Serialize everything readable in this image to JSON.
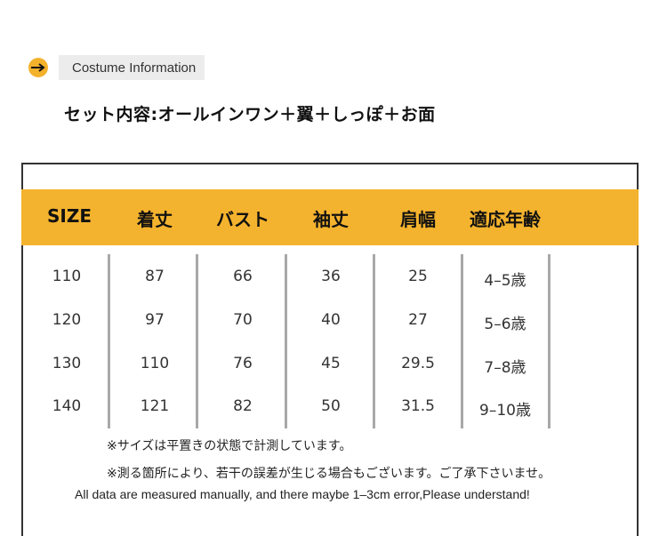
{
  "section_label": "Costume Information",
  "contents_text": "セット内容:オールインワン＋翼＋しっぽ＋お面",
  "table": {
    "headers": [
      "SIZE",
      "着丈",
      "バスト",
      "袖丈",
      "肩幅",
      "適応年齢"
    ],
    "rows": [
      [
        "110",
        "87",
        "66",
        "36",
        "25",
        "4–5歳"
      ],
      [
        "120",
        "97",
        "70",
        "40",
        "27",
        "5–6歳"
      ],
      [
        "130",
        "110",
        "76",
        "45",
        "29.5",
        "7–8歳"
      ],
      [
        "140",
        "121",
        "82",
        "50",
        "31.5",
        "9–10歳"
      ]
    ]
  },
  "notes": [
    "※サイズは平置きの状態で計測しています。",
    "※測る箇所により、若干の誤差が生じる場合もございます。ご了承下さいませ。",
    "All data are measured manually, and there maybe 1–3cm error,Please understand!"
  ],
  "colors": {
    "accent": "#f4b32e",
    "divider": "#a8a8a8",
    "frame": "#333333"
  },
  "icons": {
    "section_arrow": "arrow-right-icon"
  }
}
